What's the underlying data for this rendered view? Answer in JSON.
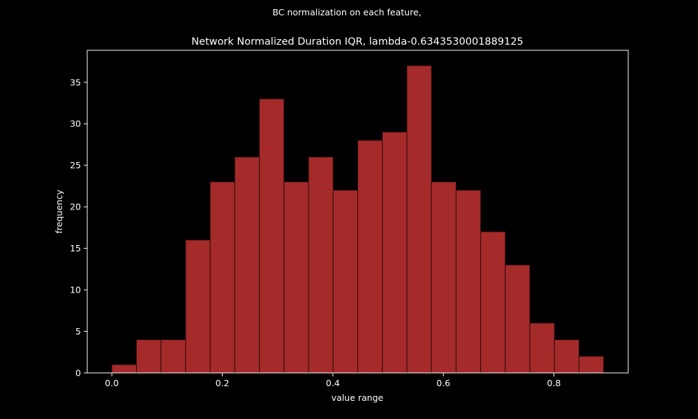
{
  "suptitle": "BC normalization on each feature,",
  "chart_data": {
    "type": "bar",
    "title": "Network Normalized Duration IQR, lambda-0.6343530001889125",
    "xlabel": "value range",
    "ylabel": "frequency",
    "xlim": [
      -0.0445,
      0.9345
    ],
    "ylim": [
      0,
      38.85
    ],
    "xticks": [
      0.0,
      0.2,
      0.4,
      0.6,
      0.8
    ],
    "xtick_labels": [
      "0.0",
      "0.2",
      "0.4",
      "0.6",
      "0.8"
    ],
    "yticks": [
      0,
      5,
      10,
      15,
      20,
      25,
      30,
      35
    ],
    "ytick_labels": [
      "0",
      "5",
      "10",
      "15",
      "20",
      "25",
      "30",
      "35"
    ],
    "bin_start": 0.0,
    "bin_width": 0.0445,
    "values": [
      1,
      4,
      4,
      16,
      23,
      26,
      33,
      23,
      26,
      22,
      28,
      29,
      37,
      23,
      22,
      17,
      13,
      6,
      4,
      2
    ],
    "bar_color": "#a52a2a",
    "edge_color": "#2b0d0d",
    "grid": false
  }
}
